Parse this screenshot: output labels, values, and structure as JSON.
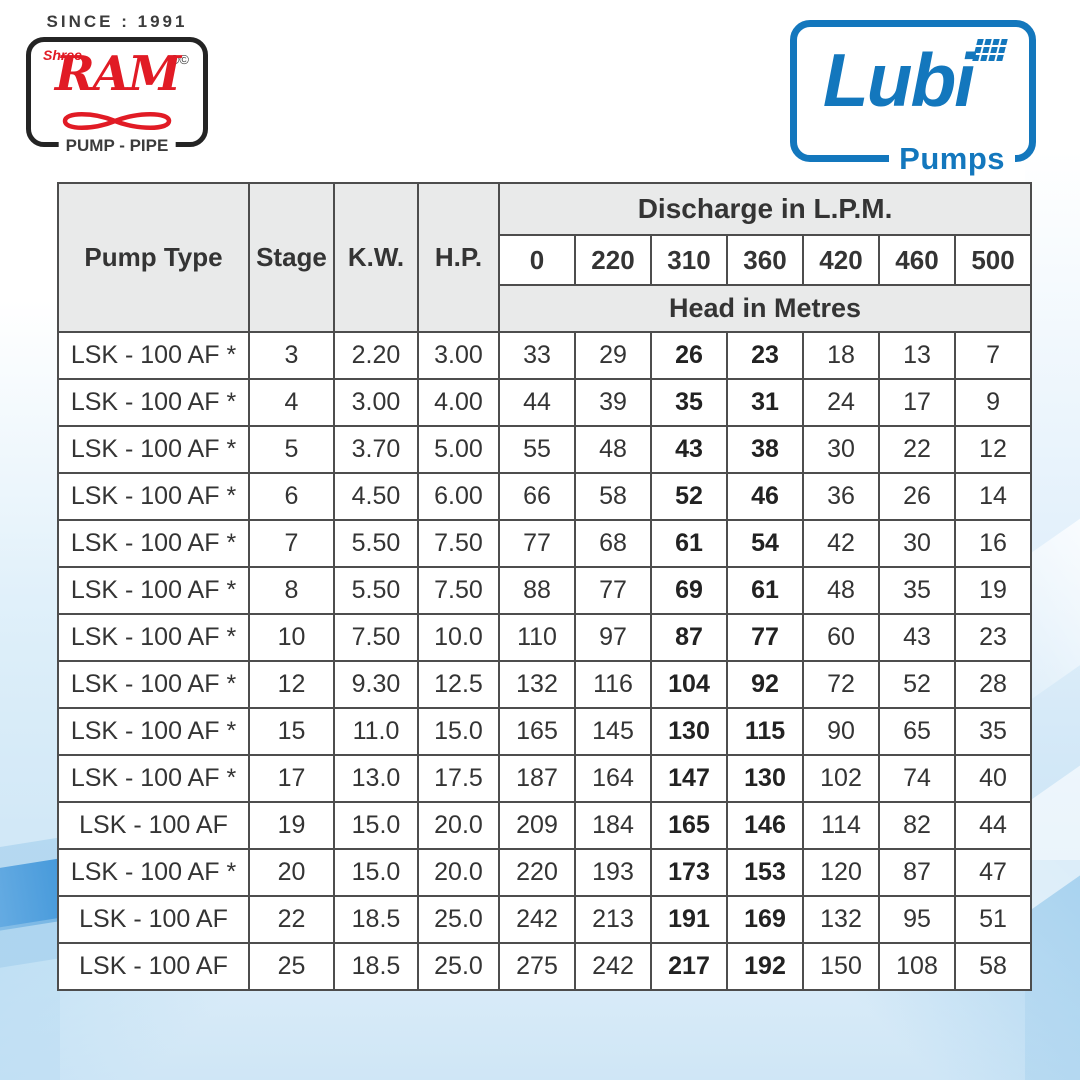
{
  "branding": {
    "since_text": "SINCE : 1991",
    "ram_logo": {
      "shree": "Shree",
      "name": "RAM",
      "marks": "®©",
      "subtitle": "PUMP - PIPE",
      "red": "#e11b25",
      "dark": "#3c3c3c"
    },
    "lubi_logo": {
      "name": "Lubi",
      "subtitle": "Pumps",
      "blue": "#1377bd"
    }
  },
  "table": {
    "col_headers": {
      "pump_type": "Pump Type",
      "stage": "Stage",
      "kw": "K.W.",
      "hp": "H.P."
    },
    "discharge_title": "Discharge in L.P.M.",
    "discharge_values": [
      "0",
      "220",
      "310",
      "360",
      "420",
      "460",
      "500"
    ],
    "head_title": "Head in Metres",
    "bold_column_indices": [
      2,
      3
    ],
    "rows": [
      {
        "pump_type": "LSK - 100 AF *",
        "stage": "3",
        "kw": "2.20",
        "hp": "3.00",
        "heads": [
          "33",
          "29",
          "26",
          "23",
          "18",
          "13",
          "7"
        ]
      },
      {
        "pump_type": "LSK - 100 AF *",
        "stage": "4",
        "kw": "3.00",
        "hp": "4.00",
        "heads": [
          "44",
          "39",
          "35",
          "31",
          "24",
          "17",
          "9"
        ]
      },
      {
        "pump_type": "LSK - 100 AF *",
        "stage": "5",
        "kw": "3.70",
        "hp": "5.00",
        "heads": [
          "55",
          "48",
          "43",
          "38",
          "30",
          "22",
          "12"
        ]
      },
      {
        "pump_type": "LSK - 100 AF *",
        "stage": "6",
        "kw": "4.50",
        "hp": "6.00",
        "heads": [
          "66",
          "58",
          "52",
          "46",
          "36",
          "26",
          "14"
        ]
      },
      {
        "pump_type": "LSK - 100 AF *",
        "stage": "7",
        "kw": "5.50",
        "hp": "7.50",
        "heads": [
          "77",
          "68",
          "61",
          "54",
          "42",
          "30",
          "16"
        ]
      },
      {
        "pump_type": "LSK - 100 AF *",
        "stage": "8",
        "kw": "5.50",
        "hp": "7.50",
        "heads": [
          "88",
          "77",
          "69",
          "61",
          "48",
          "35",
          "19"
        ]
      },
      {
        "pump_type": "LSK - 100 AF *",
        "stage": "10",
        "kw": "7.50",
        "hp": "10.0",
        "heads": [
          "110",
          "97",
          "87",
          "77",
          "60",
          "43",
          "23"
        ]
      },
      {
        "pump_type": "LSK - 100 AF *",
        "stage": "12",
        "kw": "9.30",
        "hp": "12.5",
        "heads": [
          "132",
          "116",
          "104",
          "92",
          "72",
          "52",
          "28"
        ]
      },
      {
        "pump_type": "LSK - 100 AF *",
        "stage": "15",
        "kw": "11.0",
        "hp": "15.0",
        "heads": [
          "165",
          "145",
          "130",
          "115",
          "90",
          "65",
          "35"
        ]
      },
      {
        "pump_type": "LSK - 100 AF *",
        "stage": "17",
        "kw": "13.0",
        "hp": "17.5",
        "heads": [
          "187",
          "164",
          "147",
          "130",
          "102",
          "74",
          "40"
        ]
      },
      {
        "pump_type": "LSK - 100 AF",
        "stage": "19",
        "kw": "15.0",
        "hp": "20.0",
        "heads": [
          "209",
          "184",
          "165",
          "146",
          "114",
          "82",
          "44"
        ]
      },
      {
        "pump_type": "LSK - 100 AF *",
        "stage": "20",
        "kw": "15.0",
        "hp": "20.0",
        "heads": [
          "220",
          "193",
          "173",
          "153",
          "120",
          "87",
          "47"
        ]
      },
      {
        "pump_type": "LSK - 100 AF",
        "stage": "22",
        "kw": "18.5",
        "hp": "25.0",
        "heads": [
          "242",
          "213",
          "191",
          "169",
          "132",
          "95",
          "51"
        ]
      },
      {
        "pump_type": "LSK - 100 AF",
        "stage": "25",
        "kw": "18.5",
        "hp": "25.0",
        "heads": [
          "275",
          "242",
          "217",
          "192",
          "150",
          "108",
          "58"
        ]
      }
    ]
  }
}
